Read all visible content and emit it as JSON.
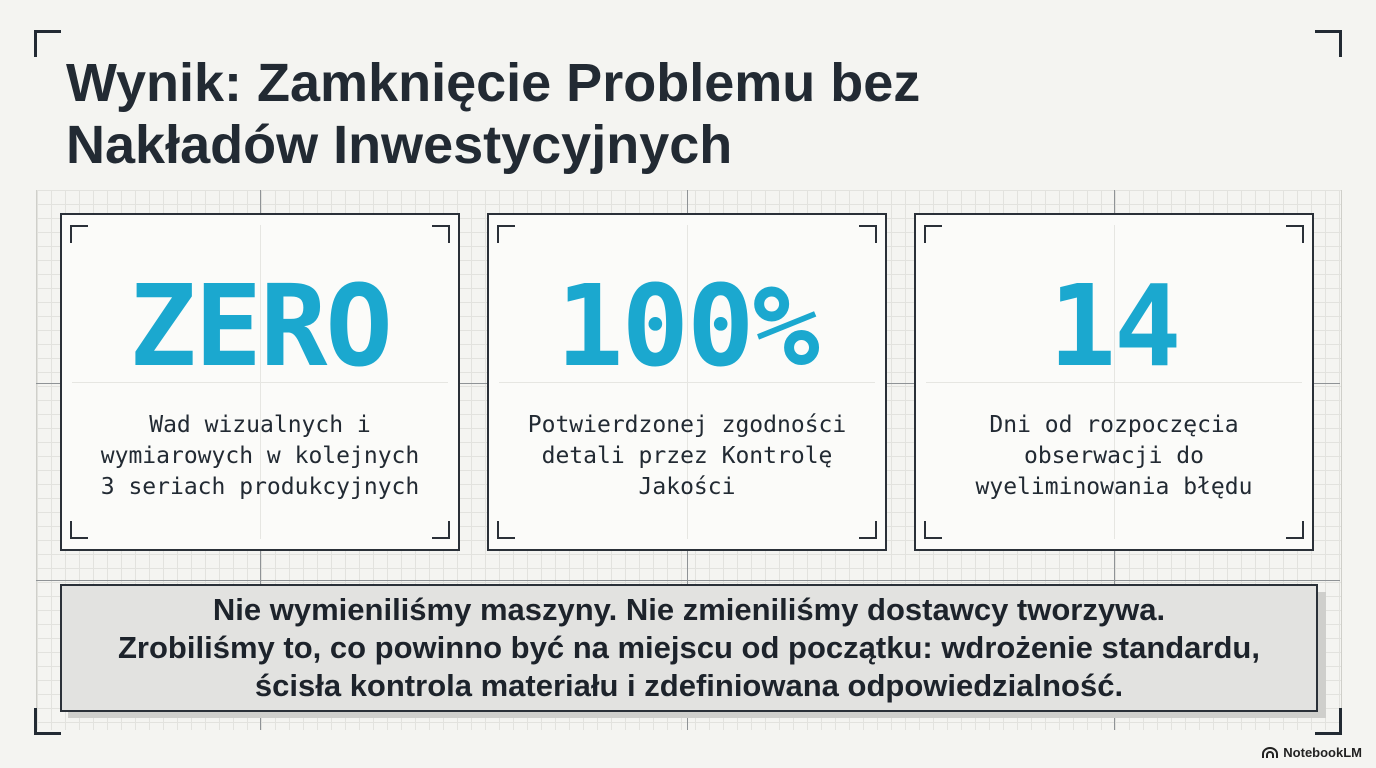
{
  "title": "Wynik: Zamknięcie Problemu bez\nNakładów Inwestycyjnych",
  "title_line1": "Wynik: Zamknięcie Problemu bez",
  "title_line2": "Nakładów Inwestycyjnych",
  "stats": [
    {
      "value": "ZERO",
      "label": "Wad wizualnych i\nwymiarowych w kolejnych\n3 seriach produkcyjnych"
    },
    {
      "value": "100%",
      "label": "Potwierdzonej zgodności\ndetali przez Kontrolę\nJakości"
    },
    {
      "value": "14",
      "label": "Dni od rozpoczęcia\nobserwacji do\nwyeliminowania błędu"
    }
  ],
  "banner": {
    "text": "Nie wymieniliśmy maszyny. Nie zmieniliśmy dostawcy tworzywa.\nZrobiliśmy to, co powinno być na miejscu od początku: wdrożenie standardu,\nścisła kontrola materiału i zdefiniowana odpowiedzialność."
  },
  "brand": {
    "label": "NotebookLM",
    "icon": "notebooklm-logo-icon"
  },
  "colors": {
    "accent": "#1ba8cf",
    "text": "#222a33",
    "background": "#f4f4f1",
    "banner": "#e2e2e0"
  }
}
